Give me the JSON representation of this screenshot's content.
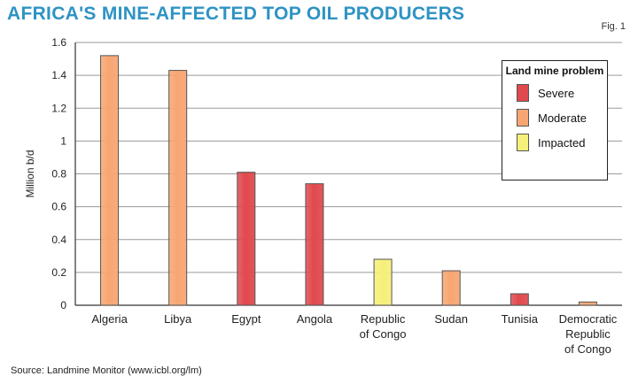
{
  "header": {
    "title": "Africa's mine-affected top oil producers",
    "fig": "Fig. 1"
  },
  "source": "Source: Landmine Monitor (www.icbl.org/lm)",
  "legend": {
    "title": "Land mine problem",
    "items": [
      {
        "label": "Severe",
        "color": "#e0494d"
      },
      {
        "label": "Moderate",
        "color": "#f7a672"
      },
      {
        "label": "Impacted",
        "color": "#f5f07a"
      }
    ]
  },
  "chart_data": {
    "type": "bar",
    "ylabel": "Million b/d",
    "ylim": [
      0,
      1.6
    ],
    "yticks": [
      "0",
      "0.2",
      "0.4",
      "0.6",
      "0.8",
      "1",
      "1.2",
      "1.4",
      "1.6"
    ],
    "grid": true,
    "legend_position": "top-right",
    "categories": [
      [
        "Algeria"
      ],
      [
        "Libya"
      ],
      [
        "Egypt"
      ],
      [
        "Angola"
      ],
      [
        "Republic",
        "of Congo"
      ],
      [
        "Sudan"
      ],
      [
        "Tunisia"
      ],
      [
        "Democratic",
        "Republic",
        "of Congo"
      ]
    ],
    "values": [
      1.52,
      1.43,
      0.81,
      0.74,
      0.28,
      0.21,
      0.07,
      0.02
    ],
    "categories_severity": [
      "Moderate",
      "Moderate",
      "Severe",
      "Severe",
      "Impacted",
      "Moderate",
      "Severe",
      "Moderate"
    ]
  }
}
